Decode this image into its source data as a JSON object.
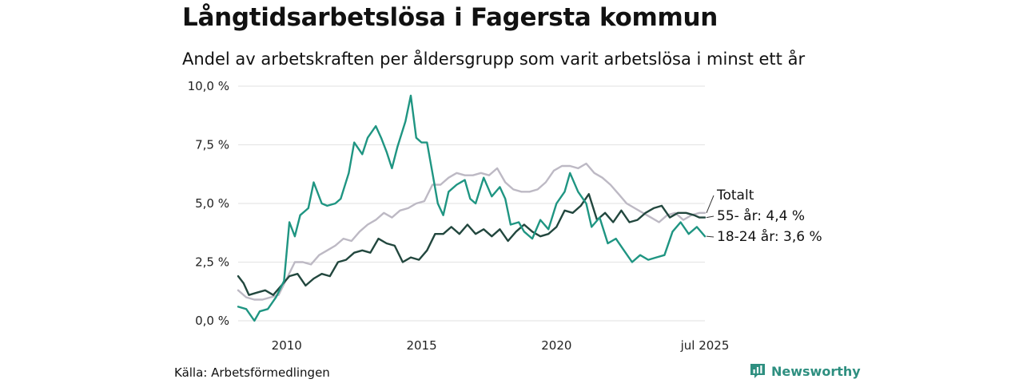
{
  "title": "Långtidsarbetslösa i Fagersta kommun",
  "subtitle": "Andel av arbetskraften per åldersgrupp som varit arbetslösa i minst ett år",
  "source": "Källa: Arbetsförmedlingen",
  "brand": {
    "name": "Newsworthy",
    "icon": "bar-chart-icon"
  },
  "chart_data": {
    "type": "line",
    "title": "Långtidsarbetslösa i Fagersta kommun",
    "subtitle": "Andel av arbetskraften per åldersgrupp som varit arbetslösa i minst ett år",
    "xlabel": "",
    "ylabel": "",
    "x_range": [
      2008.2,
      2025.5
    ],
    "ylim": [
      0,
      10
    ],
    "y_ticks": [
      {
        "value": 0,
        "label": "0,0 %"
      },
      {
        "value": 2.5,
        "label": "2,5 %"
      },
      {
        "value": 5,
        "label": "5,0 %"
      },
      {
        "value": 7.5,
        "label": "7,5 %"
      },
      {
        "value": 10,
        "label": "10,0 %"
      }
    ],
    "x_ticks": [
      {
        "value": 2010,
        "label": "2010"
      },
      {
        "value": 2015,
        "label": "2015"
      },
      {
        "value": 2020,
        "label": "2020"
      },
      {
        "value": 2025.5,
        "label": "jul 2025"
      }
    ],
    "grid": "horizontal",
    "legend": "direct labels at line ends",
    "series": [
      {
        "name": "Totalt",
        "end_label": "Totalt",
        "color": "#bdb9c4",
        "points": [
          [
            2008.2,
            1.3
          ],
          [
            2008.5,
            1.0
          ],
          [
            2008.8,
            0.9
          ],
          [
            2009.1,
            0.9
          ],
          [
            2009.4,
            1.0
          ],
          [
            2009.7,
            1.1
          ],
          [
            2010.0,
            1.8
          ],
          [
            2010.3,
            2.5
          ],
          [
            2010.6,
            2.5
          ],
          [
            2010.9,
            2.4
          ],
          [
            2011.2,
            2.8
          ],
          [
            2011.5,
            3.0
          ],
          [
            2011.8,
            3.2
          ],
          [
            2012.1,
            3.5
          ],
          [
            2012.4,
            3.4
          ],
          [
            2012.7,
            3.8
          ],
          [
            2013.0,
            4.1
          ],
          [
            2013.3,
            4.3
          ],
          [
            2013.6,
            4.6
          ],
          [
            2013.9,
            4.4
          ],
          [
            2014.2,
            4.7
          ],
          [
            2014.5,
            4.8
          ],
          [
            2014.8,
            5.0
          ],
          [
            2015.1,
            5.1
          ],
          [
            2015.4,
            5.8
          ],
          [
            2015.7,
            5.8
          ],
          [
            2016.0,
            6.1
          ],
          [
            2016.3,
            6.3
          ],
          [
            2016.6,
            6.2
          ],
          [
            2016.9,
            6.2
          ],
          [
            2017.2,
            6.3
          ],
          [
            2017.5,
            6.2
          ],
          [
            2017.8,
            6.5
          ],
          [
            2018.1,
            5.9
          ],
          [
            2018.4,
            5.6
          ],
          [
            2018.7,
            5.5
          ],
          [
            2019.0,
            5.5
          ],
          [
            2019.3,
            5.6
          ],
          [
            2019.6,
            5.9
          ],
          [
            2019.9,
            6.4
          ],
          [
            2020.2,
            6.6
          ],
          [
            2020.5,
            6.6
          ],
          [
            2020.8,
            6.5
          ],
          [
            2021.1,
            6.7
          ],
          [
            2021.4,
            6.3
          ],
          [
            2021.7,
            6.1
          ],
          [
            2022.0,
            5.8
          ],
          [
            2022.3,
            5.4
          ],
          [
            2022.6,
            5.0
          ],
          [
            2022.9,
            4.8
          ],
          [
            2023.2,
            4.6
          ],
          [
            2023.5,
            4.4
          ],
          [
            2023.8,
            4.2
          ],
          [
            2024.1,
            4.5
          ],
          [
            2024.4,
            4.6
          ],
          [
            2024.7,
            4.3
          ],
          [
            2025.0,
            4.5
          ],
          [
            2025.3,
            4.6
          ],
          [
            2025.5,
            4.6
          ]
        ]
      },
      {
        "name": "55- år",
        "end_label": "55- år: 4,4 %",
        "color": "#22473e",
        "points": [
          [
            2008.2,
            1.9
          ],
          [
            2008.4,
            1.6
          ],
          [
            2008.6,
            1.1
          ],
          [
            2008.9,
            1.2
          ],
          [
            2009.2,
            1.3
          ],
          [
            2009.5,
            1.1
          ],
          [
            2009.8,
            1.5
          ],
          [
            2010.1,
            1.9
          ],
          [
            2010.4,
            2.0
          ],
          [
            2010.7,
            1.5
          ],
          [
            2011.0,
            1.8
          ],
          [
            2011.3,
            2.0
          ],
          [
            2011.6,
            1.9
          ],
          [
            2011.9,
            2.5
          ],
          [
            2012.2,
            2.6
          ],
          [
            2012.5,
            2.9
          ],
          [
            2012.8,
            3.0
          ],
          [
            2013.1,
            2.9
          ],
          [
            2013.4,
            3.5
          ],
          [
            2013.7,
            3.3
          ],
          [
            2014.0,
            3.2
          ],
          [
            2014.3,
            2.5
          ],
          [
            2014.6,
            2.7
          ],
          [
            2014.9,
            2.6
          ],
          [
            2015.2,
            3.0
          ],
          [
            2015.5,
            3.7
          ],
          [
            2015.8,
            3.7
          ],
          [
            2016.1,
            4.0
          ],
          [
            2016.4,
            3.7
          ],
          [
            2016.7,
            4.1
          ],
          [
            2017.0,
            3.7
          ],
          [
            2017.3,
            3.9
          ],
          [
            2017.6,
            3.6
          ],
          [
            2017.9,
            3.9
          ],
          [
            2018.2,
            3.4
          ],
          [
            2018.5,
            3.8
          ],
          [
            2018.8,
            4.1
          ],
          [
            2019.1,
            3.8
          ],
          [
            2019.4,
            3.6
          ],
          [
            2019.7,
            3.7
          ],
          [
            2020.0,
            4.0
          ],
          [
            2020.3,
            4.7
          ],
          [
            2020.6,
            4.6
          ],
          [
            2020.9,
            4.9
          ],
          [
            2021.2,
            5.4
          ],
          [
            2021.5,
            4.3
          ],
          [
            2021.8,
            4.6
          ],
          [
            2022.1,
            4.2
          ],
          [
            2022.4,
            4.7
          ],
          [
            2022.7,
            4.2
          ],
          [
            2023.0,
            4.3
          ],
          [
            2023.3,
            4.6
          ],
          [
            2023.6,
            4.8
          ],
          [
            2023.9,
            4.9
          ],
          [
            2024.2,
            4.4
          ],
          [
            2024.5,
            4.6
          ],
          [
            2024.8,
            4.6
          ],
          [
            2025.1,
            4.5
          ],
          [
            2025.3,
            4.4
          ],
          [
            2025.5,
            4.4
          ]
        ]
      },
      {
        "name": "18-24 år",
        "end_label": "18-24 år: 3,6 %",
        "color": "#1f9582",
        "points": [
          [
            2008.2,
            0.6
          ],
          [
            2008.5,
            0.5
          ],
          [
            2008.8,
            0.0
          ],
          [
            2009.0,
            0.4
          ],
          [
            2009.3,
            0.5
          ],
          [
            2009.6,
            1.0
          ],
          [
            2009.9,
            1.7
          ],
          [
            2010.1,
            4.2
          ],
          [
            2010.3,
            3.6
          ],
          [
            2010.5,
            4.5
          ],
          [
            2010.8,
            4.8
          ],
          [
            2011.0,
            5.9
          ],
          [
            2011.3,
            5.0
          ],
          [
            2011.5,
            4.9
          ],
          [
            2011.8,
            5.0
          ],
          [
            2012.0,
            5.2
          ],
          [
            2012.3,
            6.3
          ],
          [
            2012.5,
            7.6
          ],
          [
            2012.8,
            7.1
          ],
          [
            2013.0,
            7.8
          ],
          [
            2013.3,
            8.3
          ],
          [
            2013.5,
            7.8
          ],
          [
            2013.7,
            7.2
          ],
          [
            2013.9,
            6.5
          ],
          [
            2014.1,
            7.4
          ],
          [
            2014.4,
            8.5
          ],
          [
            2014.6,
            9.6
          ],
          [
            2014.8,
            7.8
          ],
          [
            2015.0,
            7.6
          ],
          [
            2015.2,
            7.6
          ],
          [
            2015.4,
            6.3
          ],
          [
            2015.6,
            5.0
          ],
          [
            2015.8,
            4.5
          ],
          [
            2016.0,
            5.5
          ],
          [
            2016.3,
            5.8
          ],
          [
            2016.6,
            6.0
          ],
          [
            2016.8,
            5.2
          ],
          [
            2017.0,
            5.0
          ],
          [
            2017.3,
            6.1
          ],
          [
            2017.6,
            5.3
          ],
          [
            2017.9,
            5.7
          ],
          [
            2018.1,
            5.2
          ],
          [
            2018.3,
            4.1
          ],
          [
            2018.6,
            4.2
          ],
          [
            2018.8,
            3.8
          ],
          [
            2019.1,
            3.5
          ],
          [
            2019.4,
            4.3
          ],
          [
            2019.7,
            3.9
          ],
          [
            2020.0,
            5.0
          ],
          [
            2020.3,
            5.5
          ],
          [
            2020.5,
            6.3
          ],
          [
            2020.8,
            5.5
          ],
          [
            2021.1,
            5.0
          ],
          [
            2021.3,
            4.0
          ],
          [
            2021.6,
            4.4
          ],
          [
            2021.9,
            3.3
          ],
          [
            2022.2,
            3.5
          ],
          [
            2022.5,
            3.0
          ],
          [
            2022.8,
            2.5
          ],
          [
            2023.1,
            2.8
          ],
          [
            2023.4,
            2.6
          ],
          [
            2023.7,
            2.7
          ],
          [
            2024.0,
            2.8
          ],
          [
            2024.3,
            3.8
          ],
          [
            2024.6,
            4.2
          ],
          [
            2024.9,
            3.7
          ],
          [
            2025.2,
            4.0
          ],
          [
            2025.5,
            3.6
          ]
        ]
      }
    ]
  }
}
